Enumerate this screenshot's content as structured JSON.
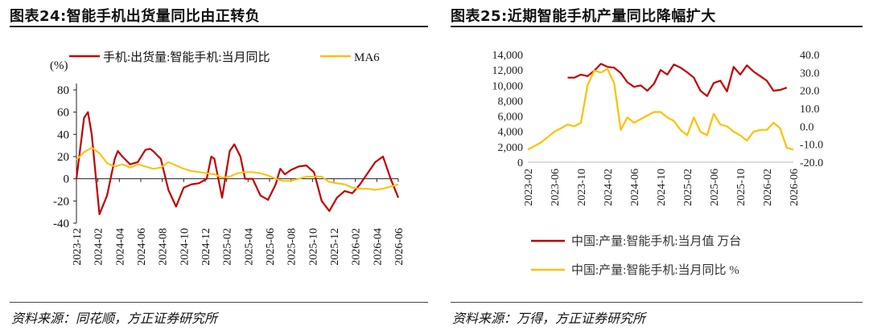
{
  "panel24": {
    "title": "图表24:智能手机出货量同比由正转负",
    "source": "资料来源：同花顺，方正证券研究所"
  },
  "panel25": {
    "title": "图表25:近期智能手机产量同比降幅扩大",
    "source": "资料来源：万得，方正证券研究所"
  },
  "chart_data": [
    {
      "type": "line",
      "unit_label": "(%)",
      "ylim": [
        -40,
        80
      ],
      "yticks": [
        -40,
        -20,
        0,
        20,
        40,
        60,
        80
      ],
      "x_tick_labels": [
        "2023-12",
        "2024-02",
        "2024-04",
        "2024-06",
        "2024-08",
        "2024-10",
        "2024-12",
        "2025-02",
        "2025-04",
        "2025-06",
        "2025-08",
        "2025-10",
        "2025-12",
        "2026-02",
        "2026-04",
        "2026-06"
      ],
      "legend_position": "top",
      "series": [
        {
          "name": "手机:出货量:智能手机:当月同比",
          "color": "#c00000",
          "points": [
            [
              0,
              0
            ],
            [
              0.5,
              55
            ],
            [
              0.75,
              60
            ],
            [
              1,
              40
            ],
            [
              1.5,
              -32
            ],
            [
              2,
              -15
            ],
            [
              2.5,
              18
            ],
            [
              2.7,
              25
            ],
            [
              3,
              20
            ],
            [
              3.5,
              13
            ],
            [
              4,
              15
            ],
            [
              4.5,
              26
            ],
            [
              4.8,
              27
            ],
            [
              5,
              25
            ],
            [
              5.5,
              18
            ],
            [
              6,
              -10
            ],
            [
              6.5,
              -25
            ],
            [
              7,
              -8
            ],
            [
              7.5,
              -5
            ],
            [
              8,
              -4
            ],
            [
              8.5,
              0
            ],
            [
              8.8,
              20
            ],
            [
              9,
              18
            ],
            [
              9.5,
              -17
            ],
            [
              10,
              25
            ],
            [
              10.3,
              31
            ],
            [
              10.7,
              20
            ],
            [
              11,
              0
            ],
            [
              11.5,
              0
            ],
            [
              12,
              -15
            ],
            [
              12.5,
              -19
            ],
            [
              13,
              -5
            ],
            [
              13.3,
              9
            ],
            [
              13.6,
              4
            ],
            [
              14,
              8
            ],
            [
              14.5,
              11
            ],
            [
              15,
              12
            ],
            [
              15.5,
              6
            ],
            [
              16,
              -20
            ],
            [
              16.5,
              -29
            ],
            [
              17,
              -17
            ],
            [
              17.5,
              -11
            ],
            [
              18,
              -13
            ],
            [
              18.5,
              -5
            ],
            [
              19,
              5
            ],
            [
              19.5,
              15
            ],
            [
              20,
              20
            ],
            [
              20.5,
              0
            ],
            [
              21,
              -17
            ]
          ]
        },
        {
          "name": "MA6",
          "color": "#ffc000",
          "points": [
            [
              0,
              17
            ],
            [
              0.5,
              24
            ],
            [
              1,
              28
            ],
            [
              1.5,
              23
            ],
            [
              2,
              14
            ],
            [
              2.5,
              11
            ],
            [
              3,
              13
            ],
            [
              3.5,
              10
            ],
            [
              4,
              13
            ],
            [
              4.5,
              11
            ],
            [
              5,
              9
            ],
            [
              5.5,
              10
            ],
            [
              6,
              15
            ],
            [
              6.5,
              12
            ],
            [
              7,
              9
            ],
            [
              7.5,
              7
            ],
            [
              8,
              6
            ],
            [
              8.5,
              5
            ],
            [
              9,
              4
            ],
            [
              9.5,
              1
            ],
            [
              10,
              2
            ],
            [
              10.5,
              5
            ],
            [
              11,
              6
            ],
            [
              11.5,
              6
            ],
            [
              12,
              5
            ],
            [
              12.5,
              3
            ],
            [
              13,
              0
            ],
            [
              13.5,
              -2
            ],
            [
              14,
              -2
            ],
            [
              14.5,
              0
            ],
            [
              15,
              2
            ],
            [
              15.5,
              2
            ],
            [
              16,
              2
            ],
            [
              16.5,
              -3
            ],
            [
              17,
              -4
            ],
            [
              17.5,
              -5
            ],
            [
              18,
              -8
            ],
            [
              18.5,
              -9
            ],
            [
              19,
              -9
            ],
            [
              19.5,
              -10
            ],
            [
              20,
              -9
            ],
            [
              20.5,
              -7
            ],
            [
              21,
              -5
            ]
          ]
        }
      ]
    },
    {
      "type": "line",
      "y_left": {
        "ylim": [
          0,
          14000
        ],
        "ticks": [
          "0",
          "2,000",
          "4,000",
          "6,000",
          "8,000",
          "10,000",
          "12,000",
          "14,000"
        ]
      },
      "y_right": {
        "ylim": [
          -20,
          40
        ],
        "ticks": [
          "-20.0",
          "-10.0",
          "0.0",
          "10.0",
          "20.0",
          "30.0",
          "40.0"
        ]
      },
      "x_tick_labels": [
        "2023-02",
        "2023-06",
        "2023-10",
        "2024-02",
        "2024-06",
        "2024-10",
        "2025-02",
        "2025-06",
        "2025-10",
        "2026-02",
        "2026-06"
      ],
      "legend_position": "bottom",
      "series": [
        {
          "name": "中国:产量:智能手机:当月值 万台",
          "color": "#c00000",
          "axis": "left",
          "points": [
            [
              6,
              11000
            ],
            [
              7,
              11000
            ],
            [
              8,
              11400
            ],
            [
              9,
              11200
            ],
            [
              10,
              11900
            ],
            [
              11,
              12800
            ],
            [
              12,
              12400
            ],
            [
              13,
              12300
            ],
            [
              14,
              11600
            ],
            [
              15,
              10400
            ],
            [
              16,
              9800
            ],
            [
              17,
              10000
            ],
            [
              18,
              9300
            ],
            [
              19,
              10200
            ],
            [
              20,
              12000
            ],
            [
              21,
              11400
            ],
            [
              22,
              12700
            ],
            [
              23,
              12300
            ],
            [
              24,
              11700
            ],
            [
              25,
              11000
            ],
            [
              26,
              9300
            ],
            [
              27,
              8600
            ],
            [
              28,
              10300
            ],
            [
              29,
              10600
            ],
            [
              30,
              9200
            ],
            [
              31,
              12400
            ],
            [
              32,
              11400
            ],
            [
              33,
              12600
            ],
            [
              34,
              11800
            ],
            [
              35,
              11200
            ],
            [
              36,
              10600
            ],
            [
              37,
              9300
            ],
            [
              38,
              9400
            ],
            [
              39,
              9700
            ]
          ]
        },
        {
          "name": "中国:产量:智能手机:当月同比 %",
          "color": "#ffc000",
          "axis": "right",
          "points": [
            [
              0,
              -13
            ],
            [
              1,
              -11
            ],
            [
              2,
              -9
            ],
            [
              3,
              -6
            ],
            [
              4,
              -3
            ],
            [
              5,
              -1
            ],
            [
              6,
              1
            ],
            [
              7,
              0
            ],
            [
              8,
              2
            ],
            [
              9,
              23
            ],
            [
              10,
              31
            ],
            [
              11,
              30
            ],
            [
              12,
              32
            ],
            [
              13,
              24
            ],
            [
              14,
              -2
            ],
            [
              15,
              5
            ],
            [
              16,
              2
            ],
            [
              17,
              4
            ],
            [
              18,
              6
            ],
            [
              19,
              8
            ],
            [
              20,
              8
            ],
            [
              21,
              5
            ],
            [
              22,
              3
            ],
            [
              23,
              -2
            ],
            [
              24,
              -5
            ],
            [
              25,
              5
            ],
            [
              26,
              -3
            ],
            [
              27,
              -5
            ],
            [
              28,
              7
            ],
            [
              29,
              1
            ],
            [
              30,
              0
            ],
            [
              31,
              -3
            ],
            [
              32,
              -5
            ],
            [
              33,
              -8
            ],
            [
              34,
              -3
            ],
            [
              35,
              -2
            ],
            [
              36,
              -2
            ],
            [
              37,
              2
            ],
            [
              38,
              -1
            ],
            [
              39,
              -12
            ],
            [
              40,
              -13
            ]
          ]
        }
      ]
    }
  ]
}
